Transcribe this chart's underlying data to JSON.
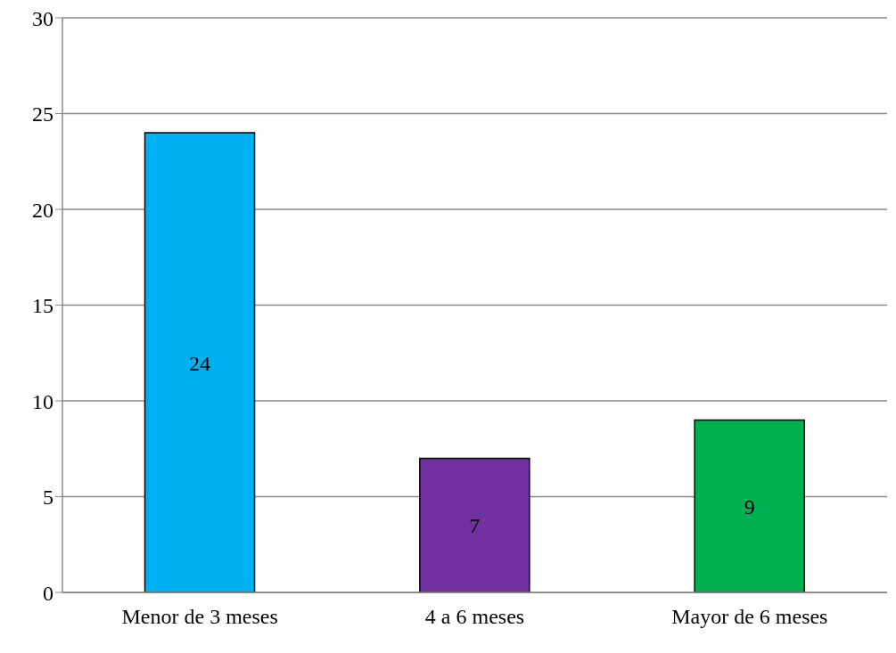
{
  "chart_data": {
    "type": "bar",
    "categories": [
      "Menor de 3 meses",
      "4 a 6 meses",
      "Mayor de 6 meses"
    ],
    "values": [
      24,
      7,
      9
    ],
    "colors": [
      "#00b0f0",
      "#7030a0",
      "#00b050"
    ],
    "ylim": [
      0,
      30
    ],
    "yticks": [
      0,
      5,
      10,
      15,
      20,
      25,
      30
    ],
    "grid": "y",
    "data_labels": true
  }
}
